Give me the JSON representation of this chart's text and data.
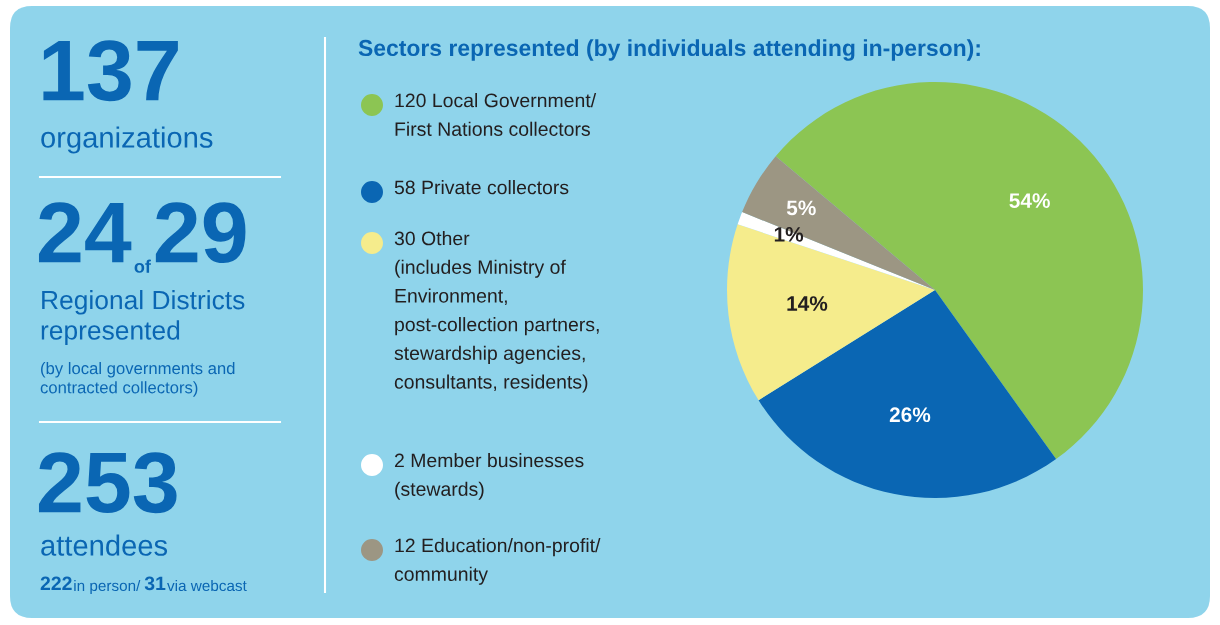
{
  "chart_data": [
    {
      "type": "other",
      "annotations": [
        "137",
        "organizations",
        "24",
        "of",
        "29",
        "Regional Districts\nrepresented",
        "(by local governments and\ncontracted collectors)",
        "253",
        "attendees",
        "222",
        "in person/ ",
        "31",
        "via webcast"
      ]
    },
    {
      "type": "pie",
      "title": "Sectors represented (by individuals attending in-person):",
      "categories": [
        "120 Local Government/\nFirst Nations collectors",
        "58 Private collectors",
        "30 Other\n(includes Ministry of\nEnvironment,\npost-collection partners,\nstewardship agencies,\nconsultants, residents)",
        "2 Member businesses\n(stewards)",
        "12 Education/non-profit/\ncommunity"
      ],
      "values": [
        54,
        26,
        14,
        1,
        5
      ],
      "value_labels": [
        "54%",
        "26%",
        "14%",
        "1%",
        "5%"
      ],
      "colors": [
        "#8cc553",
        "#0a66b3",
        "#f5ec8c",
        "#ffffff",
        "#9c9683"
      ],
      "legend": "left"
    }
  ]
}
